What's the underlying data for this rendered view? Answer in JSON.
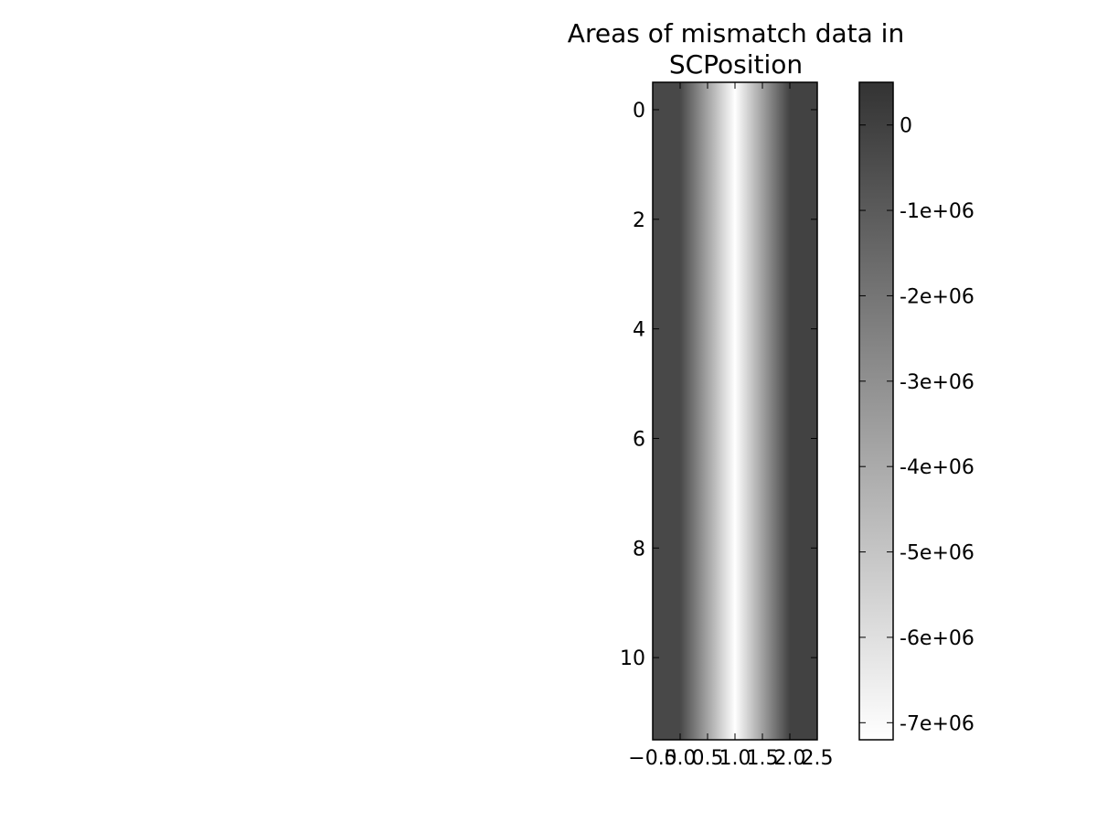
{
  "chart_data": {
    "type": "heatmap",
    "title_lines": [
      "Areas of mismatch data in",
      "SCPosition"
    ],
    "x_ticks": [
      -0.5,
      0.0,
      0.5,
      1.0,
      1.5,
      2.0,
      2.5
    ],
    "x_tick_labels": [
      "−0.5",
      "0.0",
      "0.5",
      "1.0",
      "1.5",
      "2.0",
      "2.5"
    ],
    "xlim": [
      -0.5,
      2.5
    ],
    "y_ticks": [
      0,
      2,
      4,
      6,
      8,
      10
    ],
    "y_tick_labels": [
      "0",
      "2",
      "4",
      "6",
      "8",
      "10"
    ],
    "ylim": [
      -0.5,
      11.5
    ],
    "columns": [
      0,
      1,
      2
    ],
    "rows": 12,
    "column_values": [
      -300000,
      -7200000,
      -50000
    ],
    "colorbar": {
      "vmin": -7200000,
      "vmax": 500000,
      "ticks": [
        0,
        -1000000,
        -2000000,
        -3000000,
        -4000000,
        -5000000,
        -6000000,
        -7000000
      ],
      "tick_labels": [
        "0",
        "-1e+06",
        "-2e+06",
        "-3e+06",
        "-4e+06",
        "-5e+06",
        "-6e+06",
        "-7e+06"
      ],
      "colormap": "gray",
      "color_low": "#ffffff",
      "color_high": "#333333"
    }
  }
}
